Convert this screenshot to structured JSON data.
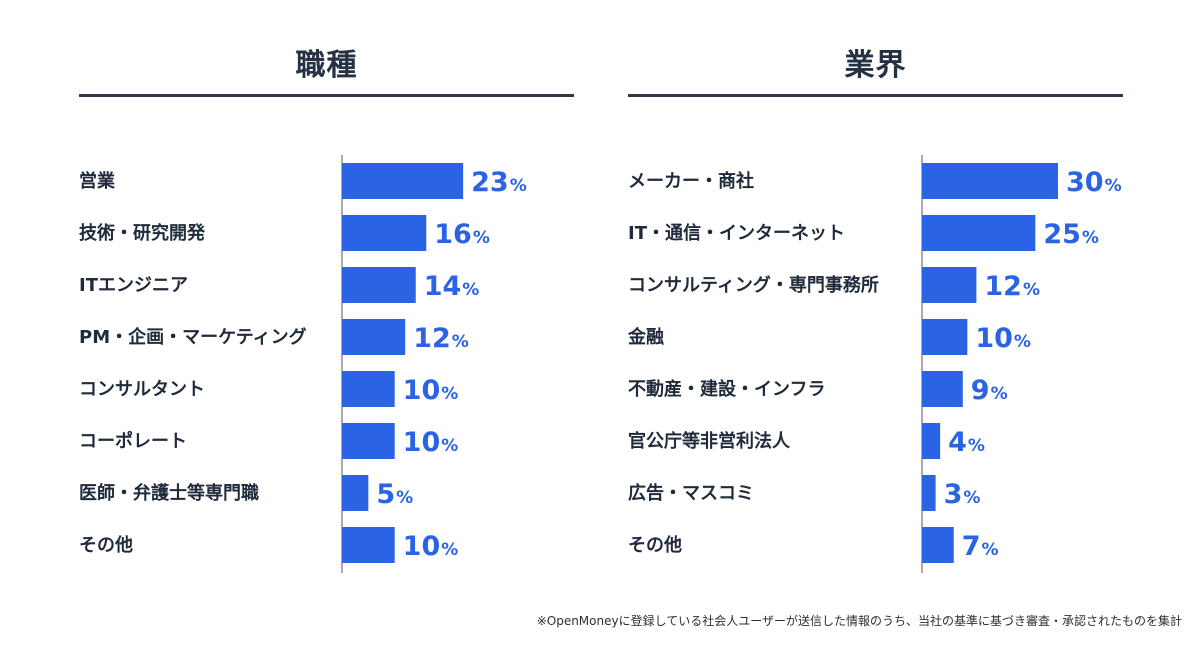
{
  "chart_data": [
    {
      "type": "bar",
      "orientation": "horizontal",
      "title": "職種",
      "categories": [
        "営業",
        "技術・研究開発",
        "ITエンジニア",
        "PM・企画・マーケティング",
        "コンサルタント",
        "コーポレート",
        "医師・弁護士等専門職",
        "その他"
      ],
      "values": [
        23,
        16,
        14,
        12,
        10,
        10,
        5,
        10
      ],
      "unit": "%",
      "xlim": [
        0,
        30
      ],
      "color": "#2a63e4"
    },
    {
      "type": "bar",
      "orientation": "horizontal",
      "title": "業界",
      "categories": [
        "メーカー・商社",
        "IT・通信・インターネット",
        "コンサルティング・専門事務所",
        "金融",
        "不動産・建設・インフラ",
        "官公庁等非営利法人",
        "広告・マスコミ",
        "その他"
      ],
      "values": [
        30,
        25,
        12,
        10,
        9,
        4,
        3,
        7
      ],
      "unit": "%",
      "xlim": [
        0,
        30
      ],
      "color": "#2a63e4"
    }
  ],
  "footnote": "※OpenMoneyに登録している社会人ユーザーが送信した情報のうち、当社の基準に基づき審査・承認されたものを集計"
}
